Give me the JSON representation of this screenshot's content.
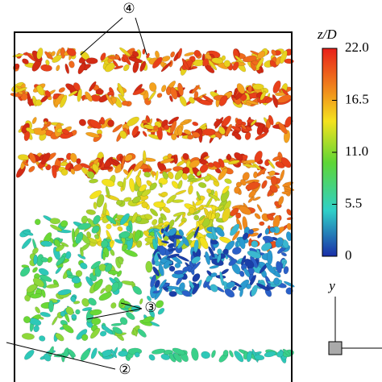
{
  "colorbar": {
    "title": "z/D",
    "lim": [
      0,
      22
    ],
    "ticks": [
      0,
      5.5,
      {
        "value": 11,
        "label": "11.0"
      },
      16.5,
      {
        "value": 22,
        "label": "22.0"
      }
    ]
  },
  "annotations": [
    "④",
    "③",
    "②"
  ],
  "axis_label": "y"
}
